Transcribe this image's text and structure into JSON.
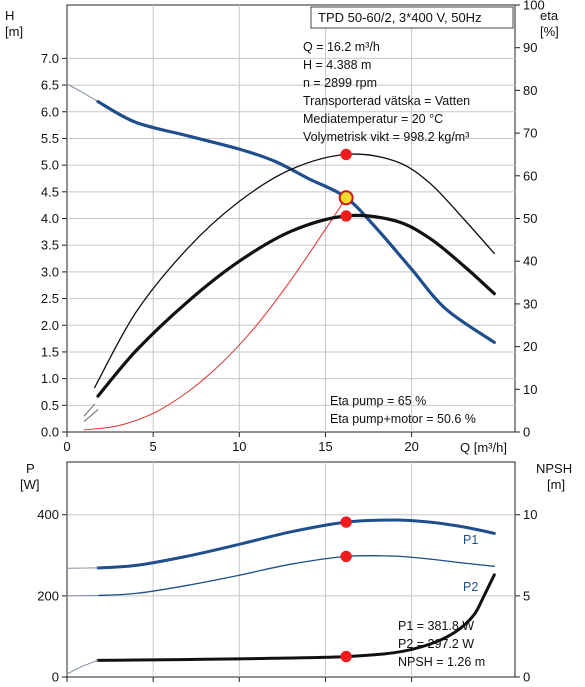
{
  "chart_data": [
    {
      "type": "line",
      "title": "TPD 50-60/2, 3*400 V, 50Hz",
      "ylabel": "H\n[m]",
      "ylabel_right": "eta\n[%]",
      "xlabel": "Q [m³/h]",
      "xlim": [
        0,
        26
      ],
      "ylim": [
        0,
        8.0
      ],
      "ylim_right": [
        0,
        100
      ],
      "x_ticks": [
        "0",
        "5",
        "10",
        "15",
        "20"
      ],
      "y_ticks": [
        "0.0",
        "0.5",
        "1.0",
        "1.5",
        "2.0",
        "2.5",
        "3.0",
        "3.5",
        "4.0",
        "4.5",
        "5.0",
        "5.5",
        "6.0",
        "6.5",
        "7.0"
      ],
      "y_right_ticks": [
        "0",
        "10",
        "20",
        "30",
        "40",
        "50",
        "60",
        "70",
        "80",
        "90",
        "100"
      ],
      "grid": true,
      "info_lines": [
        "Q = 16.2 m³/h",
        "H = 4.388 m",
        "n = 2899 rpm",
        "Transporterad vätska = Vatten",
        "Mediatemperatur = 20 °C",
        "Volymetrisk vikt = 998.2 kg/m³"
      ],
      "eta_lines": [
        "Eta pump = 65 %",
        "Eta pump+motor = 50.6 %"
      ],
      "duty_point": {
        "x": 16.2,
        "y": 4.388
      },
      "series": [
        {
          "key": "head_ext",
          "color": "#7a8ba0",
          "width": 1,
          "points": [
            [
              0,
              6.52
            ],
            [
              0.8,
              6.38
            ],
            [
              1.8,
              6.19
            ]
          ]
        },
        {
          "key": "head",
          "color": "#1f4e8c",
          "width": 3.2,
          "points": [
            [
              1.8,
              6.19
            ],
            [
              4,
              5.8
            ],
            [
              7,
              5.55
            ],
            [
              10,
              5.3
            ],
            [
              12,
              5.08
            ],
            [
              14,
              4.75
            ],
            [
              16.2,
              4.39
            ],
            [
              18,
              3.8
            ],
            [
              20,
              3.05
            ],
            [
              22,
              2.3
            ],
            [
              24.8,
              1.68
            ]
          ]
        },
        {
          "key": "system",
          "color": "#e03030",
          "width": 1,
          "points": [
            [
              1,
              0.04
            ],
            [
              3,
              0.12
            ],
            [
              5,
              0.35
            ],
            [
              7,
              0.75
            ],
            [
              9,
              1.3
            ],
            [
              11,
              2.0
            ],
            [
              13,
              2.85
            ],
            [
              15,
              3.8
            ],
            [
              16.2,
              4.39
            ]
          ]
        },
        {
          "key": "eta_pump_ext",
          "color": "#666666",
          "width": 1,
          "points": [
            [
              1,
              0.3
            ],
            [
              1.6,
              0.52
            ]
          ]
        },
        {
          "key": "eta_pump",
          "color": "#111111",
          "width": 1.3,
          "axis": "right",
          "points": [
            [
              1.6,
              10.4
            ],
            [
              4,
              28
            ],
            [
              7,
              43
            ],
            [
              10,
              54
            ],
            [
              13,
              61.5
            ],
            [
              16.2,
              65
            ],
            [
              19,
              63.5
            ],
            [
              21,
              58.5
            ],
            [
              23,
              50
            ],
            [
              24.8,
              41.8
            ]
          ]
        },
        {
          "key": "eta_total_ext",
          "color": "#666666",
          "width": 1,
          "points": [
            [
              1,
              0.2
            ],
            [
              1.8,
              0.42
            ]
          ]
        },
        {
          "key": "eta_total",
          "color": "#111111",
          "width": 3.2,
          "axis": "right",
          "points": [
            [
              1.8,
              8.4
            ],
            [
              4,
              19
            ],
            [
              7,
              30.5
            ],
            [
              10,
              40
            ],
            [
              13,
              47
            ],
            [
              16.2,
              50.6
            ],
            [
              19,
              49.5
            ],
            [
              21,
              45.5
            ],
            [
              23,
              39
            ],
            [
              24.8,
              32.4
            ]
          ]
        }
      ],
      "points": [
        {
          "x": 16.2,
          "y": 65,
          "axis": "right"
        },
        {
          "x": 16.2,
          "y": 50.6,
          "axis": "right"
        }
      ]
    },
    {
      "type": "line",
      "ylabel": "P\n[W]",
      "ylabel_right": "NPSH\n[m]",
      "xlim": [
        0,
        26
      ],
      "ylim": [
        0,
        530
      ],
      "ylim_right": [
        0,
        13.25
      ],
      "y_ticks": [
        "0",
        "200",
        "400"
      ],
      "y_right_ticks": [
        "0",
        "5",
        "10"
      ],
      "grid": true,
      "info_lines": [
        "P1 = 381.8 W",
        "P2 = 297.2 W",
        "NPSH = 1.26 m"
      ],
      "series": [
        {
          "name": "P1",
          "key": "p1",
          "color": "#1f4e8c",
          "width": 3,
          "points": [
            [
              1.8,
              269
            ],
            [
              4,
              275
            ],
            [
              7,
              298
            ],
            [
              10,
              327
            ],
            [
              13,
              358
            ],
            [
              16.2,
              381.8
            ],
            [
              19,
              387
            ],
            [
              21,
              382
            ],
            [
              23,
              370
            ],
            [
              24.8,
              354
            ]
          ]
        },
        {
          "key": "p1_ext",
          "color": "#7a8ba0",
          "width": 1,
          "points": [
            [
              0,
              268
            ],
            [
              1.8,
              269
            ]
          ]
        },
        {
          "name": "P2",
          "key": "p2",
          "color": "#1f4e8c",
          "width": 1.3,
          "points": [
            [
              1.8,
              201
            ],
            [
              4,
              206
            ],
            [
              7,
              226
            ],
            [
              10,
              251
            ],
            [
              13,
              278
            ],
            [
              16.2,
              297.2
            ],
            [
              19,
              298
            ],
            [
              21,
              291
            ],
            [
              23,
              281
            ],
            [
              24.8,
              273
            ]
          ]
        },
        {
          "key": "p2_ext",
          "color": "#7a8ba0",
          "width": 1,
          "points": [
            [
              0,
              200
            ],
            [
              1.8,
              201
            ]
          ]
        },
        {
          "key": "npsh",
          "color": "#111111",
          "width": 3,
          "axis": "right",
          "points": [
            [
              1.8,
              1.02
            ],
            [
              4,
              1.05
            ],
            [
              8,
              1.09
            ],
            [
              12,
              1.15
            ],
            [
              16.2,
              1.26
            ],
            [
              19,
              1.5
            ],
            [
              21,
              2.0
            ],
            [
              22.5,
              2.75
            ],
            [
              23.6,
              3.8
            ],
            [
              24.2,
              5.0
            ],
            [
              24.8,
              6.3
            ]
          ]
        },
        {
          "key": "npsh_ext",
          "color": "#7a8ba0",
          "width": 1,
          "axis": "right",
          "points": [
            [
              0,
              0.18
            ],
            [
              0.8,
              0.62
            ],
            [
              1.8,
              1.02
            ]
          ]
        }
      ],
      "points": [
        {
          "x": 16.2,
          "y": 381.8
        },
        {
          "x": 16.2,
          "y": 297.2
        },
        {
          "x": 16.2,
          "y": 1.26,
          "axis": "right"
        }
      ]
    }
  ]
}
